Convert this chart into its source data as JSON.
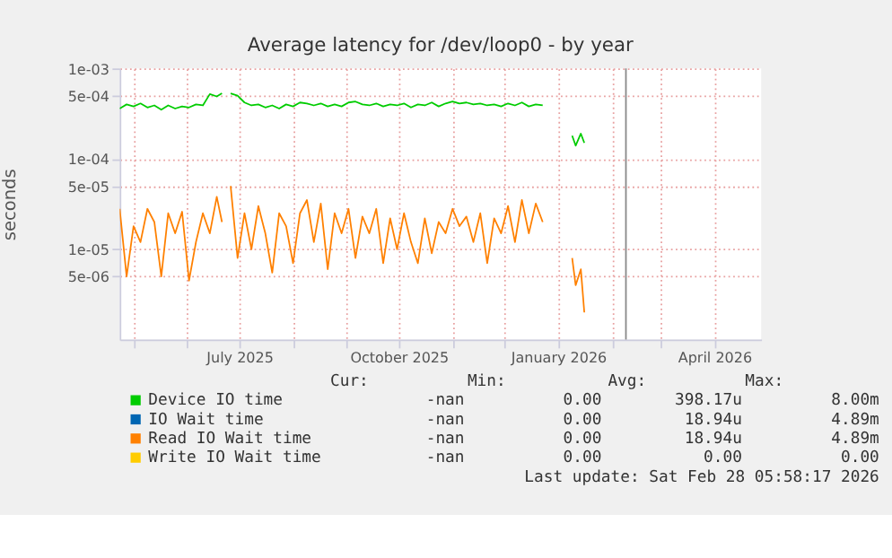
{
  "chart_data": {
    "type": "line",
    "title": "Average latency for /dev/loop0 - by year",
    "ylabel": "seconds",
    "log": true,
    "grid": true,
    "legend": "bottom",
    "line_style": "solid",
    "marker": "none",
    "x": [
      "2025-04-23",
      "2025-04-27",
      "2025-05-01",
      "2025-05-05",
      "2025-05-09",
      "2025-05-13",
      "2025-05-17",
      "2025-05-21",
      "2025-05-25",
      "2025-05-29",
      "2025-06-02",
      "2025-06-06",
      "2025-06-10",
      "2025-06-14",
      "2025-06-18",
      "2025-06-21",
      "2025-06-22",
      "2025-06-26",
      "2025-06-30",
      "2025-07-04",
      "2025-07-08",
      "2025-07-12",
      "2025-07-16",
      "2025-07-20",
      "2025-07-24",
      "2025-07-28",
      "2025-08-01",
      "2025-08-05",
      "2025-08-09",
      "2025-08-13",
      "2025-08-17",
      "2025-08-21",
      "2025-08-25",
      "2025-08-29",
      "2025-09-02",
      "2025-09-06",
      "2025-09-10",
      "2025-09-14",
      "2025-09-18",
      "2025-09-22",
      "2025-09-26",
      "2025-09-30",
      "2025-10-04",
      "2025-10-08",
      "2025-10-12",
      "2025-10-16",
      "2025-10-20",
      "2025-10-24",
      "2025-10-28",
      "2025-11-01",
      "2025-11-05",
      "2025-11-09",
      "2025-11-13",
      "2025-11-17",
      "2025-11-21",
      "2025-11-25",
      "2025-11-29",
      "2025-12-03",
      "2025-12-07",
      "2025-12-11",
      "2025-12-15",
      "2025-12-19",
      "2025-12-23",
      "2025-12-24",
      "2026-01-09",
      "2026-01-11",
      "2026-01-14",
      "2026-01-16"
    ],
    "series": [
      {
        "name": "Device IO time",
        "color": "#00cc00",
        "values": [
          0.00036,
          0.0004,
          0.00038,
          0.00041,
          0.00037,
          0.00039,
          0.00035,
          0.00039,
          0.00036,
          0.00038,
          0.00037,
          0.0004,
          0.00039,
          0.00052,
          0.00049,
          0.00053,
          null,
          0.00053,
          0.0005,
          0.00042,
          0.00039,
          0.0004,
          0.00037,
          0.00039,
          0.00036,
          0.0004,
          0.00038,
          0.00042,
          0.00041,
          0.00039,
          0.00041,
          0.00038,
          0.0004,
          0.00038,
          0.00042,
          0.00043,
          0.0004,
          0.00039,
          0.00041,
          0.00038,
          0.0004,
          0.00039,
          0.00041,
          0.00037,
          0.0004,
          0.00039,
          0.00042,
          0.00038,
          0.00041,
          0.00043,
          0.00041,
          0.00042,
          0.0004,
          0.00041,
          0.00039,
          0.0004,
          0.00038,
          0.00041,
          0.00039,
          0.00042,
          0.00038,
          0.0004,
          0.00039,
          null,
          0.00018,
          0.00014,
          0.00019,
          0.00015
        ]
      },
      {
        "name": "IO Wait time",
        "color": "#0066b3",
        "values": [
          null,
          null,
          null,
          null,
          null,
          null,
          null,
          null,
          null,
          null,
          null,
          null,
          null,
          null,
          null,
          null,
          null,
          null,
          null,
          null,
          null,
          null,
          null,
          null,
          null,
          null,
          null,
          null,
          null,
          null,
          null,
          null,
          null,
          null,
          null,
          null,
          null,
          null,
          null,
          null,
          null,
          null,
          null,
          null,
          null,
          null,
          null,
          null,
          null,
          null,
          null,
          null,
          null,
          null,
          null,
          null,
          null,
          null,
          null,
          null,
          null,
          null,
          null,
          null,
          null,
          null,
          null,
          null
        ]
      },
      {
        "name": "Read IO Wait time",
        "color": "#ff8000",
        "values": [
          2.8e-05,
          5e-06,
          1.8e-05,
          1.2e-05,
          2.8e-05,
          2e-05,
          5e-06,
          2.5e-05,
          1.5e-05,
          2.6e-05,
          4.5e-06,
          1.2e-05,
          2.5e-05,
          1.5e-05,
          3.8e-05,
          2e-05,
          null,
          5e-05,
          8e-06,
          2.5e-05,
          1e-05,
          3e-05,
          1.5e-05,
          5.5e-06,
          2.5e-05,
          1.8e-05,
          7e-06,
          2.5e-05,
          3.5e-05,
          1.2e-05,
          3.2e-05,
          6e-06,
          2.5e-05,
          1.5e-05,
          2.8e-05,
          8e-06,
          2.3e-05,
          1.5e-05,
          2.8e-05,
          7e-06,
          2.2e-05,
          1e-05,
          2.5e-05,
          1.2e-05,
          7e-06,
          2.2e-05,
          9e-06,
          2e-05,
          1.5e-05,
          2.8e-05,
          1.8e-05,
          2.3e-05,
          1.2e-05,
          2.5e-05,
          7e-06,
          2.2e-05,
          1.5e-05,
          3e-05,
          1.2e-05,
          3.5e-05,
          1.5e-05,
          3.2e-05,
          2e-05,
          null,
          8e-06,
          4e-06,
          6e-06,
          2e-06
        ]
      },
      {
        "name": "Write IO Wait time",
        "color": "#ffcc00",
        "values": [
          null,
          null,
          null,
          null,
          null,
          null,
          null,
          null,
          null,
          null,
          null,
          null,
          null,
          null,
          null,
          null,
          null,
          null,
          null,
          null,
          null,
          null,
          null,
          null,
          null,
          null,
          null,
          null,
          null,
          null,
          null,
          null,
          null,
          null,
          null,
          null,
          null,
          null,
          null,
          null,
          null,
          null,
          null,
          null,
          null,
          null,
          null,
          null,
          null,
          null,
          null,
          null,
          null,
          null,
          null,
          null,
          null,
          null,
          null,
          null,
          null,
          null,
          null,
          null,
          null,
          null,
          null,
          null
        ]
      }
    ],
    "xlim": [
      "2025-04-23",
      "2026-04-28"
    ],
    "xticks": [
      {
        "value": "2025-05-01",
        "label": null
      },
      {
        "value": "2025-06-01",
        "label": null
      },
      {
        "value": "2025-07-01",
        "label": "July 2025"
      },
      {
        "value": "2025-08-01",
        "label": null
      },
      {
        "value": "2025-09-01",
        "label": null
      },
      {
        "value": "2025-10-01",
        "label": "October 2025"
      },
      {
        "value": "2025-11-01",
        "label": null
      },
      {
        "value": "2025-12-01",
        "label": null
      },
      {
        "value": "2026-01-01",
        "label": "January 2026"
      },
      {
        "value": "2026-02-01",
        "label": null
      },
      {
        "value": "2026-03-01",
        "label": null
      },
      {
        "value": "2026-04-01",
        "label": "April 2026"
      }
    ],
    "ylim": [
      1e-06,
      0.001
    ],
    "yticks": [
      {
        "value": 0.001,
        "label": "1e-03"
      },
      {
        "value": 0.0005,
        "label": "5e-04"
      },
      {
        "value": 0.0001,
        "label": "1e-04"
      },
      {
        "value": 5e-05,
        "label": "5e-05"
      },
      {
        "value": 1e-05,
        "label": "1e-05"
      },
      {
        "value": 5e-06,
        "label": "5e-06"
      }
    ],
    "ref_lines": [
      {
        "axis": "x",
        "value": "2026-02-09",
        "color": "#888888"
      }
    ],
    "annotations": [
      "Cur:",
      "Min:",
      "Avg:",
      "Max:",
      "-nan",
      "0.00",
      "398.17u",
      "8.00m",
      "-nan",
      "0.00",
      "18.94u",
      "4.89m",
      "-nan",
      "0.00",
      "18.94u",
      "4.89m",
      "-nan",
      "0.00",
      "0.00",
      "0.00",
      "Last update: Sat Feb 28 05:58:17 2026"
    ]
  }
}
